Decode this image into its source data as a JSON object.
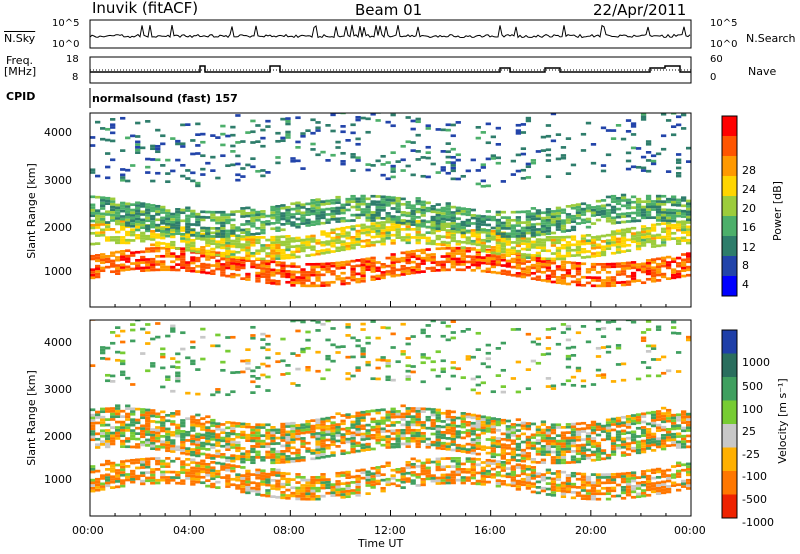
{
  "header": {
    "station": "Inuvik (fitACF)",
    "beam": "Beam 01",
    "date": "22/Apr/2011"
  },
  "top_strip": {
    "left_label": "N.Sky",
    "right_label": "N.Search",
    "left_ticks": [
      "10^5",
      "10^0"
    ],
    "right_ticks": [
      "10^5",
      "10^0"
    ],
    "left_label2": [
      "Freq.",
      "[MHz]"
    ],
    "left_ticks2": [
      "18",
      "8"
    ],
    "right_label2": "Nave",
    "right_ticks2": [
      "60",
      "0"
    ],
    "cpid_label": "CPID",
    "cpid_value": "normalsound (fast) 157"
  },
  "x_ticks": [
    "00:00",
    "04:00",
    "08:00",
    "12:00",
    "16:00",
    "20:00",
    "00:00"
  ],
  "x_label": "Time UT",
  "power_panel": {
    "ylabel": "Slant Range [km]",
    "yticks": [
      "4000",
      "3000",
      "2000",
      "1000"
    ],
    "cbar_label": "Power [dB]",
    "cbar_ticks": [
      "28",
      "24",
      "20",
      "16",
      "12",
      "8",
      "4"
    ]
  },
  "velocity_panel": {
    "ylabel": "Slant Range [km]",
    "yticks": [
      "4000",
      "3000",
      "2000",
      "1000"
    ],
    "cbar_label": "Velocity [m s⁻¹]",
    "cbar_ticks": [
      "1000",
      "500",
      "100",
      "25",
      "-25",
      "-100",
      "-500",
      "-1000"
    ]
  },
  "colors": {
    "power_scale": [
      "#0000ff",
      "#2244aa",
      "#2e7d6b",
      "#4caf6a",
      "#9ccc3c",
      "#ffd500",
      "#ff9900",
      "#ff5500",
      "#ff0000"
    ],
    "velocity_scale": [
      "#1f3fa8",
      "#2a6e5e",
      "#3f9f5f",
      "#77cc33",
      "#c8c8c8",
      "#ffb000",
      "#ff7700",
      "#ee2200"
    ]
  },
  "chart_data": [
    {
      "type": "heatmap",
      "title": "Power",
      "xlabel": "Time UT",
      "ylabel": "Slant Range [km]",
      "xlim_hours": [
        0,
        24
      ],
      "ylim": [
        180,
        4500
      ],
      "zlabel": "Power [dB]",
      "zlim": [
        0,
        32
      ],
      "bands": [
        {
          "range_km": [
            800,
            1300
          ],
          "z": 26
        },
        {
          "range_km": [
            1400,
            1900
          ],
          "z": 18
        },
        {
          "range_km": [
            1900,
            2500
          ],
          "z": 12
        },
        {
          "range_km": [
            3000,
            4500
          ],
          "z": 8
        }
      ]
    },
    {
      "type": "heatmap",
      "title": "Velocity",
      "xlabel": "Time UT",
      "ylabel": "Slant Range [km]",
      "xlim_hours": [
        0,
        24
      ],
      "ylim": [
        180,
        4500
      ],
      "zlabel": "Velocity [m s⁻¹]",
      "zlim": [
        -1000,
        1000
      ],
      "bands": [
        {
          "range_km": [
            700,
            1300
          ],
          "z": -100
        },
        {
          "range_km": [
            1500,
            2400
          ],
          "z": 0
        },
        {
          "range_km": [
            3000,
            4500
          ],
          "z": 100
        }
      ]
    }
  ]
}
